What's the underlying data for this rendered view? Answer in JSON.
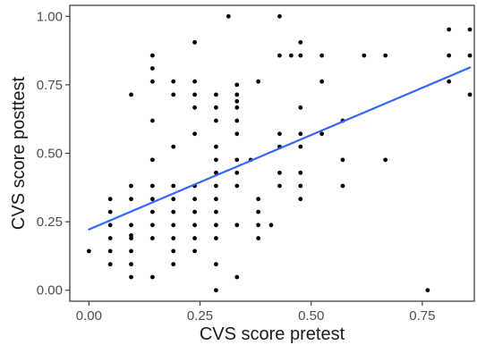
{
  "chart_data": {
    "type": "scatter",
    "title": "",
    "xlabel": "CVS score pretest",
    "ylabel": "CVS score posttest",
    "xlim": [
      -0.043,
      0.867
    ],
    "ylim": [
      -0.04,
      1.04
    ],
    "x_ticks": [
      0.0,
      0.25,
      0.5,
      0.75
    ],
    "x_tick_labels": [
      "0.00",
      "0.25",
      "0.50",
      "0.75"
    ],
    "y_ticks": [
      0.0,
      0.25,
      0.5,
      0.75,
      1.0
    ],
    "y_tick_labels": [
      "0.00",
      "0.25",
      "0.50",
      "0.75",
      "1.00"
    ],
    "grid": false,
    "colors": {
      "points": "#000000",
      "fit_line": "#3366FF",
      "axis": "#333333",
      "panel_border": "#333333"
    },
    "points": [
      {
        "x": 0.0,
        "y": 0.143
      },
      {
        "x": 0.048,
        "y": 0.095
      },
      {
        "x": 0.048,
        "y": 0.143
      },
      {
        "x": 0.048,
        "y": 0.19
      },
      {
        "x": 0.048,
        "y": 0.238
      },
      {
        "x": 0.048,
        "y": 0.286
      },
      {
        "x": 0.048,
        "y": 0.333
      },
      {
        "x": 0.095,
        "y": 0.048
      },
      {
        "x": 0.095,
        "y": 0.095
      },
      {
        "x": 0.095,
        "y": 0.143
      },
      {
        "x": 0.095,
        "y": 0.19
      },
      {
        "x": 0.095,
        "y": 0.2
      },
      {
        "x": 0.095,
        "y": 0.238
      },
      {
        "x": 0.095,
        "y": 0.333
      },
      {
        "x": 0.095,
        "y": 0.381
      },
      {
        "x": 0.095,
        "y": 0.714
      },
      {
        "x": 0.143,
        "y": 0.048
      },
      {
        "x": 0.143,
        "y": 0.19
      },
      {
        "x": 0.143,
        "y": 0.238
      },
      {
        "x": 0.143,
        "y": 0.286
      },
      {
        "x": 0.143,
        "y": 0.333
      },
      {
        "x": 0.143,
        "y": 0.381
      },
      {
        "x": 0.143,
        "y": 0.476
      },
      {
        "x": 0.143,
        "y": 0.619
      },
      {
        "x": 0.143,
        "y": 0.762
      },
      {
        "x": 0.143,
        "y": 0.81
      },
      {
        "x": 0.143,
        "y": 0.857
      },
      {
        "x": 0.19,
        "y": 0.095
      },
      {
        "x": 0.19,
        "y": 0.143
      },
      {
        "x": 0.19,
        "y": 0.19
      },
      {
        "x": 0.19,
        "y": 0.238
      },
      {
        "x": 0.19,
        "y": 0.286
      },
      {
        "x": 0.19,
        "y": 0.333
      },
      {
        "x": 0.19,
        "y": 0.381
      },
      {
        "x": 0.19,
        "y": 0.524
      },
      {
        "x": 0.19,
        "y": 0.714
      },
      {
        "x": 0.19,
        "y": 0.762
      },
      {
        "x": 0.238,
        "y": 0.143
      },
      {
        "x": 0.238,
        "y": 0.19
      },
      {
        "x": 0.238,
        "y": 0.238
      },
      {
        "x": 0.238,
        "y": 0.286
      },
      {
        "x": 0.238,
        "y": 0.333
      },
      {
        "x": 0.238,
        "y": 0.381
      },
      {
        "x": 0.238,
        "y": 0.571
      },
      {
        "x": 0.238,
        "y": 0.667
      },
      {
        "x": 0.238,
        "y": 0.714
      },
      {
        "x": 0.238,
        "y": 0.762
      },
      {
        "x": 0.238,
        "y": 0.905
      },
      {
        "x": 0.286,
        "y": 0.0
      },
      {
        "x": 0.286,
        "y": 0.095
      },
      {
        "x": 0.286,
        "y": 0.19
      },
      {
        "x": 0.286,
        "y": 0.238
      },
      {
        "x": 0.286,
        "y": 0.286
      },
      {
        "x": 0.286,
        "y": 0.333
      },
      {
        "x": 0.286,
        "y": 0.381
      },
      {
        "x": 0.286,
        "y": 0.429
      },
      {
        "x": 0.286,
        "y": 0.476
      },
      {
        "x": 0.286,
        "y": 0.524
      },
      {
        "x": 0.286,
        "y": 0.619
      },
      {
        "x": 0.286,
        "y": 0.667
      },
      {
        "x": 0.286,
        "y": 0.714
      },
      {
        "x": 0.314,
        "y": 1.0
      },
      {
        "x": 0.333,
        "y": 0.048
      },
      {
        "x": 0.333,
        "y": 0.238
      },
      {
        "x": 0.333,
        "y": 0.381
      },
      {
        "x": 0.333,
        "y": 0.429
      },
      {
        "x": 0.333,
        "y": 0.476
      },
      {
        "x": 0.333,
        "y": 0.571
      },
      {
        "x": 0.333,
        "y": 0.619
      },
      {
        "x": 0.333,
        "y": 0.667
      },
      {
        "x": 0.333,
        "y": 0.69
      },
      {
        "x": 0.333,
        "y": 0.714
      },
      {
        "x": 0.333,
        "y": 0.75
      },
      {
        "x": 0.364,
        "y": 0.476
      },
      {
        "x": 0.381,
        "y": 0.19
      },
      {
        "x": 0.381,
        "y": 0.238
      },
      {
        "x": 0.381,
        "y": 0.286
      },
      {
        "x": 0.381,
        "y": 0.333
      },
      {
        "x": 0.381,
        "y": 0.762
      },
      {
        "x": 0.41,
        "y": 0.238
      },
      {
        "x": 0.429,
        "y": 0.381
      },
      {
        "x": 0.429,
        "y": 0.429
      },
      {
        "x": 0.429,
        "y": 0.524
      },
      {
        "x": 0.429,
        "y": 0.571
      },
      {
        "x": 0.429,
        "y": 0.857
      },
      {
        "x": 0.429,
        "y": 1.0
      },
      {
        "x": 0.455,
        "y": 0.857
      },
      {
        "x": 0.476,
        "y": 0.333
      },
      {
        "x": 0.476,
        "y": 0.381
      },
      {
        "x": 0.476,
        "y": 0.429
      },
      {
        "x": 0.476,
        "y": 0.524
      },
      {
        "x": 0.476,
        "y": 0.571
      },
      {
        "x": 0.476,
        "y": 0.667
      },
      {
        "x": 0.476,
        "y": 0.857
      },
      {
        "x": 0.476,
        "y": 0.905
      },
      {
        "x": 0.524,
        "y": 0.571
      },
      {
        "x": 0.524,
        "y": 0.762
      },
      {
        "x": 0.524,
        "y": 0.857
      },
      {
        "x": 0.571,
        "y": 0.381
      },
      {
        "x": 0.571,
        "y": 0.476
      },
      {
        "x": 0.571,
        "y": 0.619
      },
      {
        "x": 0.619,
        "y": 0.857
      },
      {
        "x": 0.667,
        "y": 0.476
      },
      {
        "x": 0.667,
        "y": 0.857
      },
      {
        "x": 0.762,
        "y": 0.0
      },
      {
        "x": 0.81,
        "y": 0.762
      },
      {
        "x": 0.81,
        "y": 0.857
      },
      {
        "x": 0.81,
        "y": 0.952
      },
      {
        "x": 0.857,
        "y": 0.714
      },
      {
        "x": 0.857,
        "y": 0.857
      },
      {
        "x": 0.857,
        "y": 0.952
      }
    ],
    "fit_line": {
      "x": [
        0.0,
        0.857
      ],
      "y": [
        0.222,
        0.813
      ]
    }
  }
}
